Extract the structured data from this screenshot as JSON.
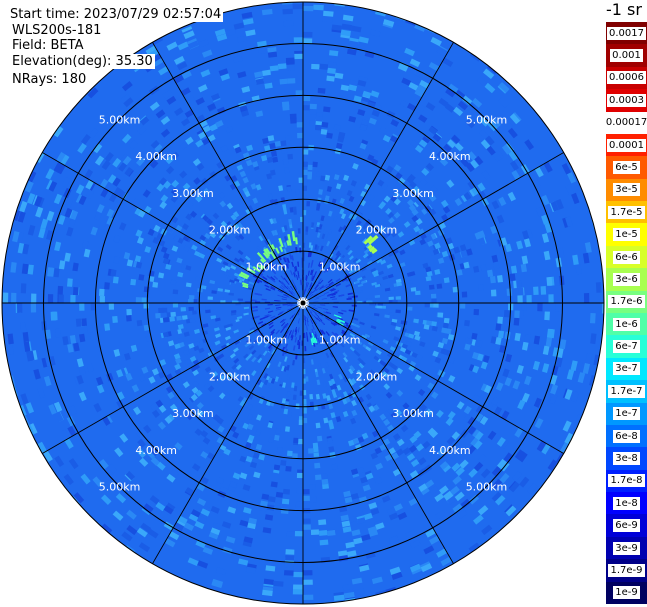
{
  "info": {
    "start_time": "Start time: 2023/07/29 02:57:04",
    "instrument": "WLS200s-181",
    "field": "Field: BETA",
    "elevation": "Elevation(deg): 35.30",
    "nrays": "NRays: 180"
  },
  "colorbar": {
    "title": "-1 sr",
    "labels_top_to_bottom": [
      "0.0017",
      "0.001",
      "0.0006",
      "0.0003",
      "0.00017",
      "0.0001",
      "6e-5",
      "3e-5",
      "1.7e-5",
      "1e-5",
      "6e-6",
      "3e-6",
      "1.7e-6",
      "1e-6",
      "6e-7",
      "3e-7",
      "1.7e-7",
      "1e-7",
      "6e-8",
      "3e-8",
      "1.7e-8",
      "1e-8",
      "6e-9",
      "3e-9",
      "1.7e-9",
      "1e-9"
    ],
    "colors_top_to_bottom": [
      "#800000",
      "#a00000",
      "#c80000",
      "#e00000",
      "#ffffff",
      "#ff2000",
      "#ff5a00",
      "#ff8c00",
      "#ffc000",
      "#ffff00",
      "#d8ff28",
      "#a8ff50",
      "#78ff80",
      "#50ffa8",
      "#28ffd8",
      "#00e8ff",
      "#00c0ff",
      "#0098ff",
      "#0070ff",
      "#0048ff",
      "#0020ff",
      "#0000ff",
      "#0000d8",
      "#0000b0",
      "#000088",
      "#000060"
    ]
  },
  "chart_data": {
    "type": "heatmap",
    "projection": "polar (PPI scan)",
    "field": "BETA",
    "units": "-1 sr",
    "elevation_deg": 35.3,
    "n_rays": 180,
    "azimuth_spokes_deg": [
      0,
      30,
      60,
      90,
      120,
      150,
      180,
      210,
      240,
      270,
      300,
      330
    ],
    "range_ring_km": [
      1.0,
      2.0,
      3.0,
      4.0,
      5.0
    ],
    "max_range_km": 5.8,
    "range_labels": [
      "1.00km",
      "2.00km",
      "3.00km",
      "4.00km",
      "5.00km"
    ],
    "scale": "log",
    "background_beta": "3e-8",
    "near_field_beta": "1e-8",
    "features": [
      {
        "azimuth_deg_from": 285,
        "azimuth_deg_to": 355,
        "range_km_from": 1.0,
        "range_km_to": 1.4,
        "beta": "1.7e-6"
      },
      {
        "azimuth_deg_from": 45,
        "azimuth_deg_to": 55,
        "range_km_from": 1.6,
        "range_km_to": 1.8,
        "beta": "1e-6"
      },
      {
        "azimuth_deg_from": 110,
        "azimuth_deg_to": 120,
        "range_km_from": 0.6,
        "range_km_to": 0.9,
        "beta": "3e-7"
      },
      {
        "azimuth_deg_from": 160,
        "azimuth_deg_to": 168,
        "range_km_from": 0.6,
        "range_km_to": 0.8,
        "beta": "3e-7"
      }
    ]
  }
}
